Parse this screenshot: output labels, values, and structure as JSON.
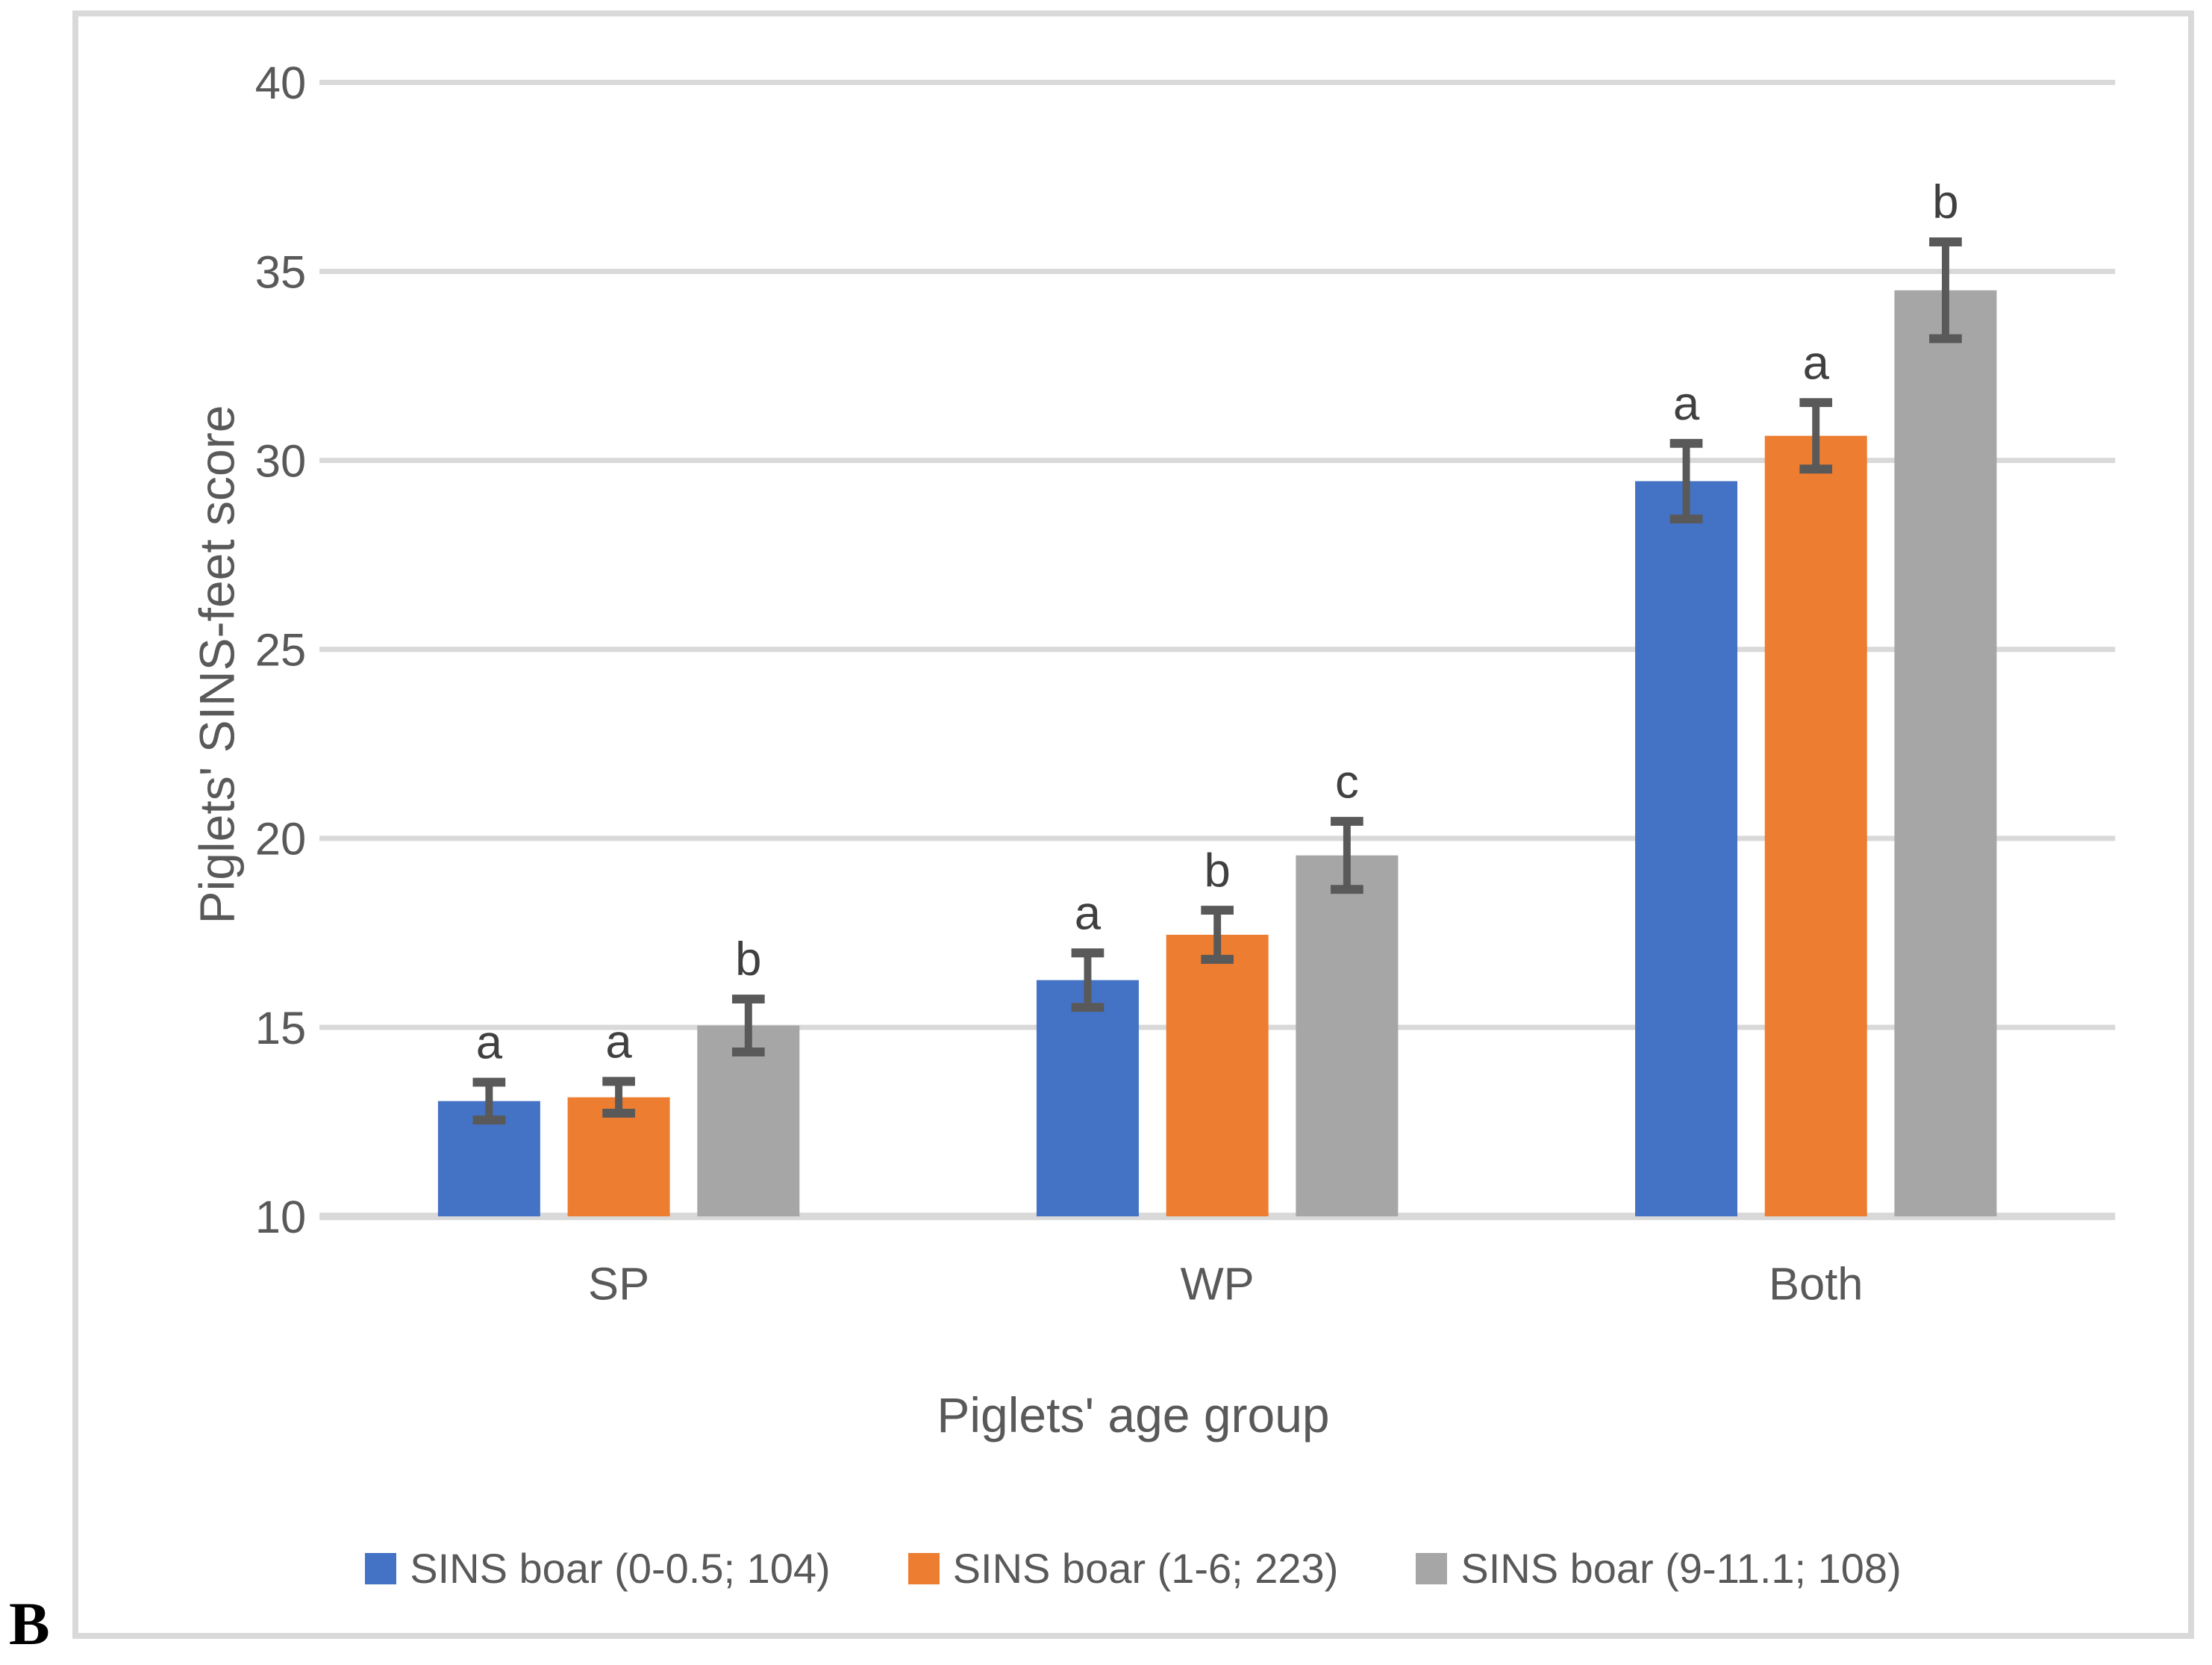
{
  "figure": {
    "panel_label": "B"
  },
  "chart_data": {
    "type": "bar",
    "title": "",
    "xlabel": "Piglets' age group",
    "ylabel": "Piglets' SINS-feet score",
    "categories": [
      "SP",
      "WP",
      "Both"
    ],
    "ylim": [
      10,
      40
    ],
    "ytick_step": 5,
    "ytick_labels": [
      "10",
      "15",
      "20",
      "25",
      "30",
      "35",
      "40"
    ],
    "grid": "horizontal",
    "legend_position": "bottom",
    "series": [
      {
        "name": "SINS boar (0-0.5; 104)",
        "color": "#4472C4",
        "values": [
          13.05,
          16.25,
          29.45
        ],
        "errors": [
          0.5,
          0.72,
          1.0
        ],
        "sig_letters": [
          "a",
          "a",
          "a"
        ]
      },
      {
        "name": "SINS boar (1-6; 223)",
        "color": "#ED7D31",
        "values": [
          13.15,
          17.45,
          30.65
        ],
        "errors": [
          0.42,
          0.65,
          0.88
        ],
        "sig_letters": [
          "a",
          "b",
          "a"
        ]
      },
      {
        "name": "SINS boar (9-11.1; 108)",
        "color": "#A6A6A6",
        "values": [
          15.05,
          19.55,
          34.5
        ],
        "errors": [
          0.7,
          0.9,
          1.28
        ],
        "sig_letters": [
          "b",
          "c",
          "b"
        ]
      }
    ],
    "error_bar_color": "#595959",
    "letter_color": "#404040",
    "gridline_color": "#D9D9D9",
    "text_color": "#595959"
  }
}
